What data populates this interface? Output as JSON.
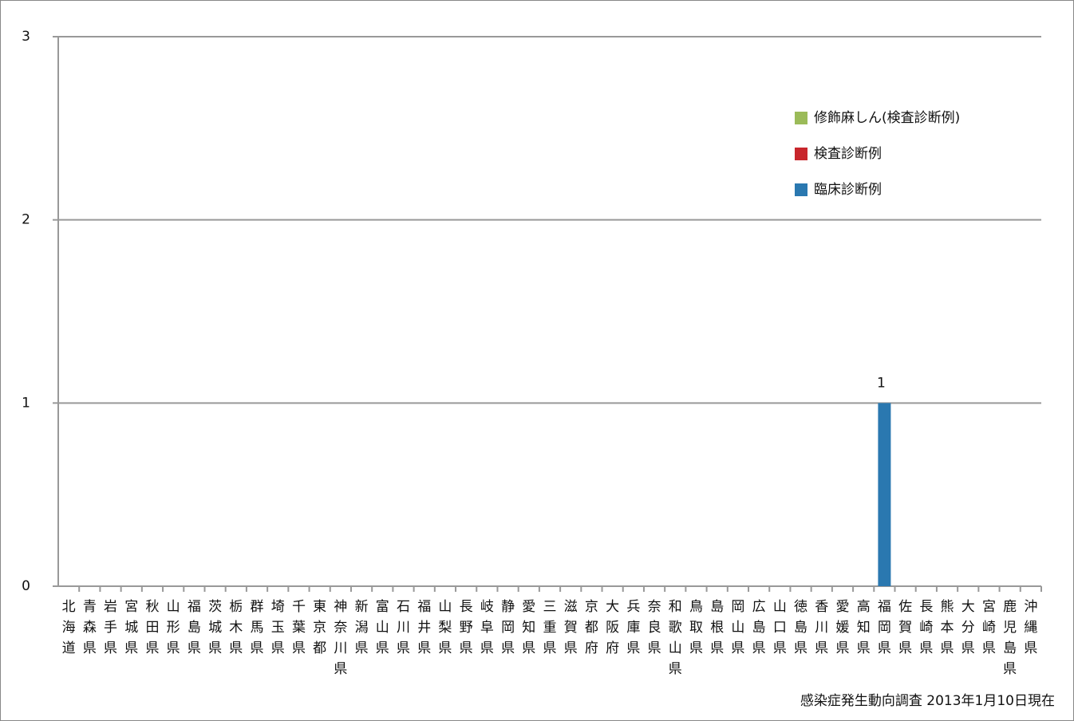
{
  "chart_data": {
    "type": "stacked_bar",
    "categories": [
      "北海道",
      "青森県",
      "岩手県",
      "宮城県",
      "秋田県",
      "山形県",
      "福島県",
      "茨城県",
      "栃木県",
      "群馬県",
      "埼玉県",
      "千葉県",
      "東京都",
      "神奈川県",
      "新潟県",
      "富山県",
      "石川県",
      "福井県",
      "山梨県",
      "長野県",
      "岐阜県",
      "静岡県",
      "愛知県",
      "三重県",
      "滋賀県",
      "京都府",
      "大阪府",
      "兵庫県",
      "奈良県",
      "和歌山県",
      "鳥取県",
      "島根県",
      "岡山県",
      "広島県",
      "山口県",
      "徳島県",
      "香川県",
      "愛媛県",
      "高知県",
      "福岡県",
      "佐賀県",
      "長崎県",
      "熊本県",
      "大分県",
      "宮崎県",
      "鹿児島県",
      "沖縄県"
    ],
    "series": [
      {
        "name": "臨床診断例",
        "color": "#2a78b0",
        "values": [
          0,
          0,
          0,
          0,
          0,
          0,
          0,
          0,
          0,
          0,
          0,
          0,
          0,
          0,
          0,
          0,
          0,
          0,
          0,
          0,
          0,
          0,
          0,
          0,
          0,
          0,
          0,
          0,
          0,
          0,
          0,
          0,
          0,
          0,
          0,
          0,
          0,
          0,
          0,
          1,
          0,
          0,
          0,
          0,
          0,
          0,
          0
        ]
      },
      {
        "name": "検査診断例",
        "color": "#c8262c",
        "values": [
          0,
          0,
          0,
          0,
          0,
          0,
          0,
          0,
          0,
          0,
          0,
          0,
          0,
          0,
          0,
          0,
          0,
          0,
          0,
          0,
          0,
          0,
          0,
          0,
          0,
          0,
          0,
          0,
          0,
          0,
          0,
          0,
          0,
          0,
          0,
          0,
          0,
          0,
          0,
          0,
          0,
          0,
          0,
          0,
          0,
          0,
          0
        ]
      },
      {
        "name": "修飾麻しん(検査診断例)",
        "color": "#9bbb59",
        "values": [
          0,
          0,
          0,
          0,
          0,
          0,
          0,
          0,
          0,
          0,
          0,
          0,
          0,
          0,
          0,
          0,
          0,
          0,
          0,
          0,
          0,
          0,
          0,
          0,
          0,
          0,
          0,
          0,
          0,
          0,
          0,
          0,
          0,
          0,
          0,
          0,
          0,
          0,
          0,
          0,
          0,
          0,
          0,
          0,
          0,
          0,
          0
        ]
      }
    ],
    "ylim": [
      0,
      3
    ],
    "yticks": [
      0,
      1,
      2,
      3
    ],
    "grid": true,
    "note": "感染症発生動向調査 2013年1月10日現在"
  }
}
